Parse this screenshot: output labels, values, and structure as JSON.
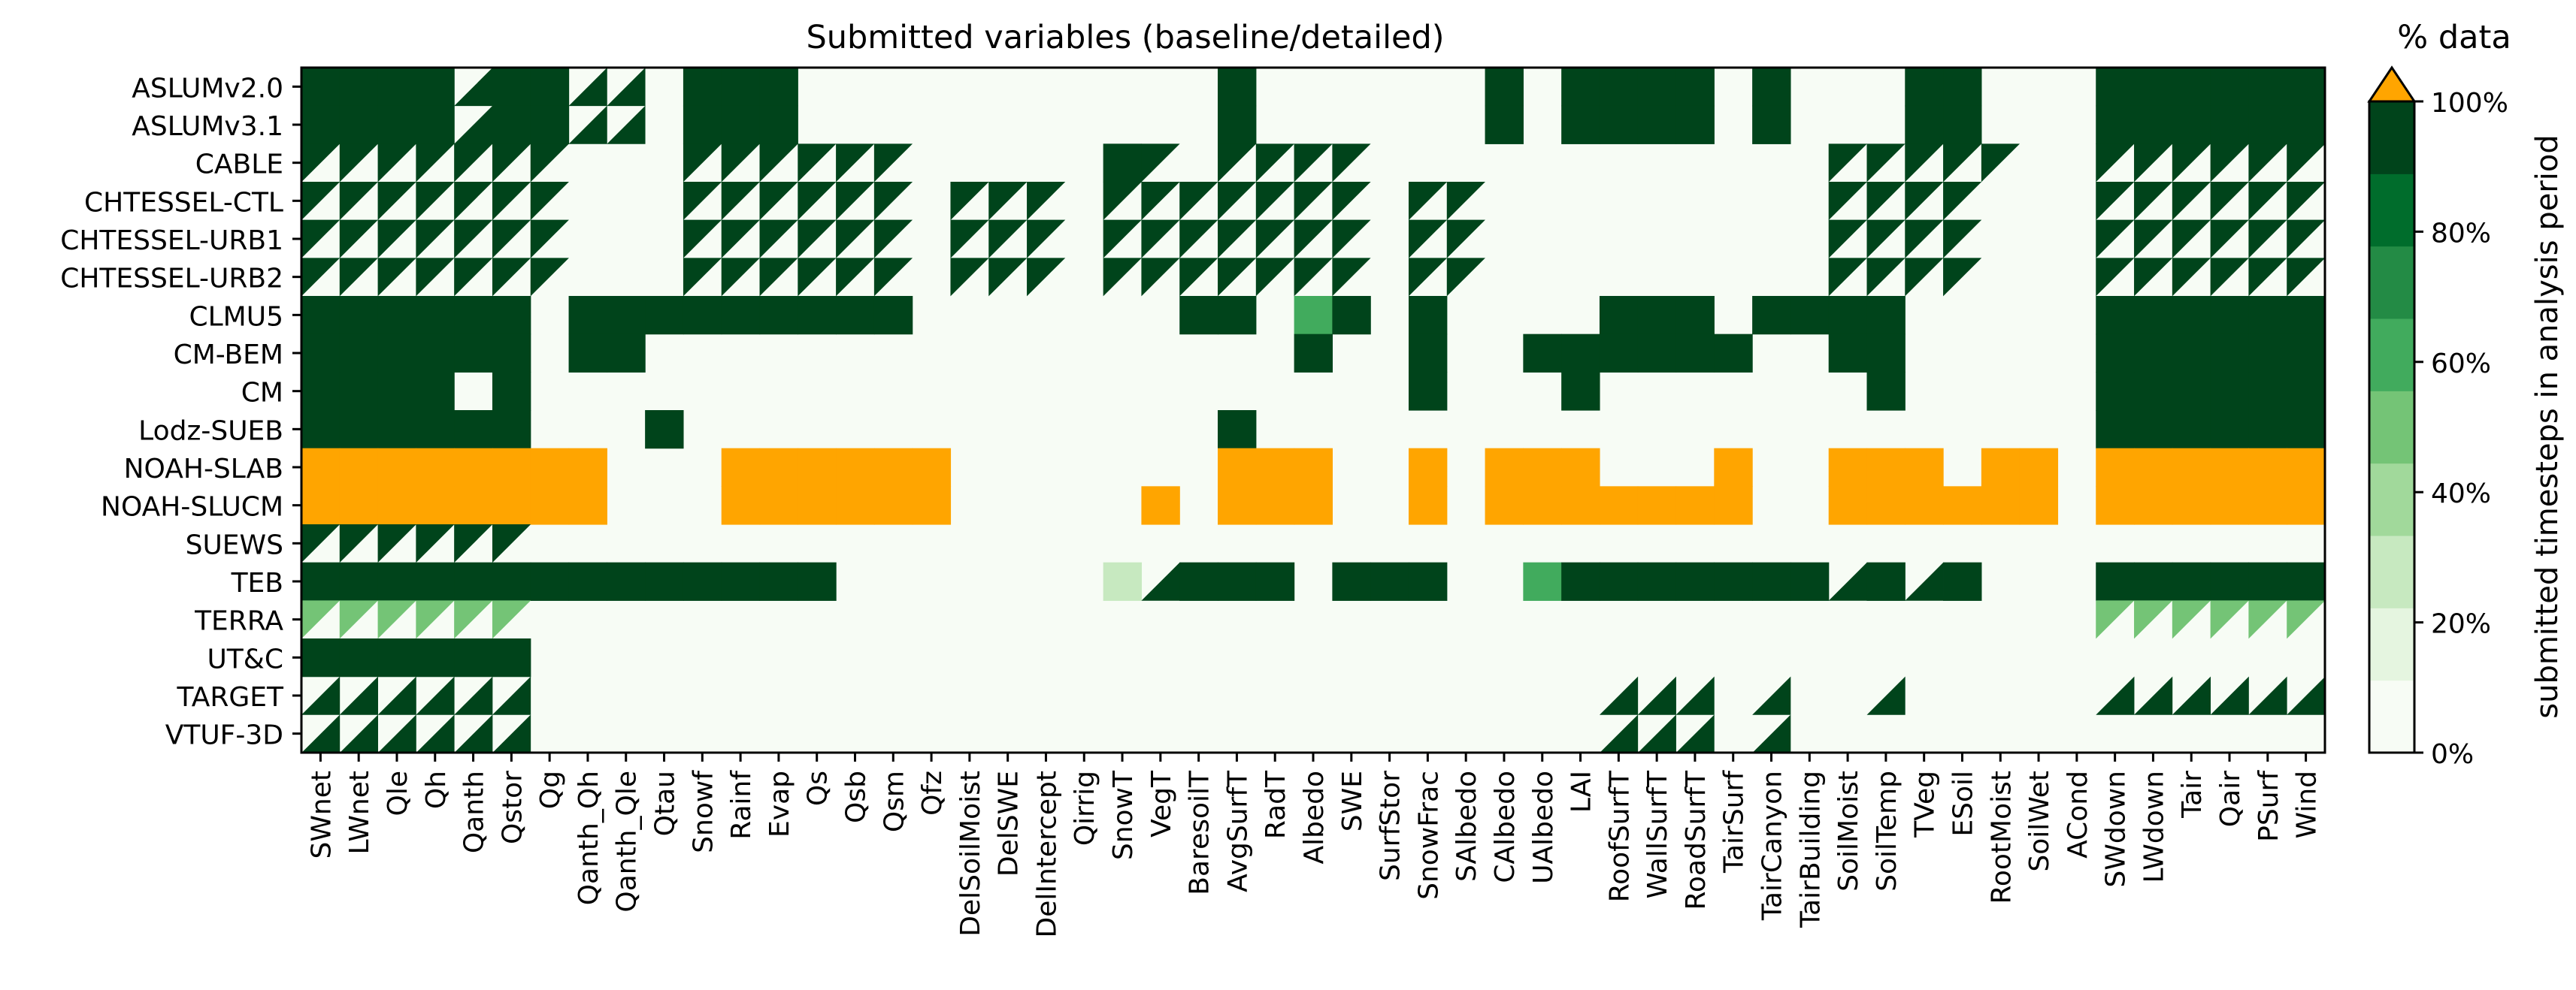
{
  "chart_data": {
    "type": "heatmap",
    "title": "Submitted variables (baseline/detailed)",
    "colorbar": {
      "title": "% data",
      "label": "submitted timesteps in analysis period",
      "ticks": [
        "0%",
        "20%",
        "40%",
        "60%",
        "80%",
        "100%"
      ],
      "levels": [
        "#f7fcf5",
        "#e5f5e0",
        "#c7e9c0",
        "#a1d99b",
        "#74c476",
        "#41ab5d",
        "#238b45",
        "#006d2c",
        "#00441b"
      ],
      "over_color": "#ffa500",
      "fill_color": "#00441b",
      "background_color": "#f7fcf5"
    },
    "models": [
      "ASLUMv2.0",
      "ASLUMv3.1",
      "CABLE",
      "CHTESSEL-CTL",
      "CHTESSEL-URB1",
      "CHTESSEL-URB2",
      "CLMU5",
      "CM-BEM",
      "CM",
      "Lodz-SUEB",
      "NOAH-SLAB",
      "NOAH-SLUCM",
      "SUEWS",
      "TEB",
      "TERRA",
      "UT&C",
      "TARGET",
      "VTUF-3D"
    ],
    "variables": [
      "SWnet",
      "LWnet",
      "Qle",
      "Qh",
      "Qanth",
      "Qstor",
      "Qg",
      "Qanth_Qh",
      "Qanth_Qle",
      "Qtau",
      "Snowf",
      "Rainf",
      "Evap",
      "Qs",
      "Qsb",
      "Qsm",
      "Qfz",
      "DelSoilMoist",
      "DelSWE",
      "DelIntercept",
      "Qirrig",
      "SnowT",
      "VegT",
      "BaresoilT",
      "AvgSurfT",
      "RadT",
      "Albedo",
      "SWE",
      "SurfStor",
      "SnowFrac",
      "SAlbedo",
      "CAlbedo",
      "UAlbedo",
      "LAI",
      "RoofSurfT",
      "WallSurfT",
      "RoadSurfT",
      "TairSurf",
      "TairCanyon",
      "TairBuilding",
      "SoilMoist",
      "SoilTemp",
      "TVeg",
      "ESoil",
      "RootMoist",
      "SoilWet",
      "ACond",
      "SWdown",
      "LWdown",
      "Tair",
      "Qair",
      "PSurf",
      "Wind"
    ],
    "cell_codes": {
      "F": "baseline and detailed submitted",
      "B": "baseline only (upper-left triangle)",
      "D": "detailed only (lower-right triangle)",
      "O": "over 100% (orange)"
    },
    "rows": [
      [
        "F",
        "F",
        "F",
        "F",
        "D",
        "F",
        "F",
        "D",
        "D",
        "",
        "F",
        "F",
        "F",
        "",
        "",
        "",
        "",
        "",
        "",
        "",
        "",
        "",
        "",
        "",
        "F",
        "",
        "",
        "",
        "",
        "",
        "",
        "F",
        "",
        "F",
        "F",
        "F",
        "F",
        "",
        "F",
        "",
        "",
        "",
        "F",
        "F",
        "",
        "",
        "",
        "F",
        "F",
        "F",
        "F",
        "F",
        "F"
      ],
      [
        "F",
        "F",
        "F",
        "F",
        "D",
        "F",
        "F",
        "D",
        "D",
        "",
        "F",
        "F",
        "F",
        "",
        "",
        "",
        "",
        "",
        "",
        "",
        "",
        "",
        "",
        "",
        "F",
        "",
        "",
        "",
        "",
        "",
        "",
        "F",
        "",
        "F",
        "F",
        "F",
        "F",
        "",
        "F",
        "",
        "",
        "",
        "F",
        "F",
        "",
        "",
        "",
        "F",
        "F",
        "F",
        "F",
        "F",
        "F"
      ],
      [
        "B",
        "B",
        "B",
        "B",
        "B",
        "B",
        "B",
        "",
        "",
        "",
        "B",
        "B",
        "B",
        "B",
        "B",
        "B",
        "",
        "",
        "",
        "",
        "",
        "F",
        "B",
        "",
        "B",
        "B",
        "B",
        "B",
        "",
        "",
        "",
        "",
        "",
        "",
        "",
        "",
        "",
        "",
        "",
        "",
        "B",
        "B",
        "B",
        "B",
        "B",
        "",
        "",
        "B",
        "B",
        "B",
        "B",
        "B",
        "B"
      ],
      [
        "B",
        "B",
        "B",
        "B",
        "B",
        "B",
        "B",
        "",
        "",
        "",
        "B",
        "B",
        "B",
        "B",
        "B",
        "B",
        "",
        "B",
        "B",
        "B",
        "",
        "B",
        "B",
        "B",
        "B",
        "B",
        "B",
        "B",
        "",
        "B",
        "B",
        "",
        "",
        "",
        "",
        "",
        "",
        "",
        "",
        "",
        "B",
        "B",
        "B",
        "B",
        "",
        "",
        "",
        "B",
        "B",
        "B",
        "B",
        "B",
        "B"
      ],
      [
        "B",
        "B",
        "B",
        "B",
        "B",
        "B",
        "B",
        "",
        "",
        "",
        "B",
        "B",
        "B",
        "B",
        "B",
        "B",
        "",
        "B",
        "B",
        "B",
        "",
        "B",
        "B",
        "B",
        "B",
        "B",
        "B",
        "B",
        "",
        "B",
        "B",
        "",
        "",
        "",
        "",
        "",
        "",
        "",
        "",
        "",
        "B",
        "B",
        "B",
        "B",
        "",
        "",
        "",
        "B",
        "B",
        "B",
        "B",
        "B",
        "B"
      ],
      [
        "B",
        "B",
        "B",
        "B",
        "B",
        "B",
        "B",
        "",
        "",
        "",
        "B",
        "B",
        "B",
        "B",
        "B",
        "B",
        "",
        "B",
        "B",
        "B",
        "",
        "B",
        "B",
        "B",
        "B",
        "B",
        "B",
        "B",
        "",
        "B",
        "B",
        "",
        "",
        "",
        "",
        "",
        "",
        "",
        "",
        "",
        "B",
        "B",
        "B",
        "B",
        "",
        "",
        "",
        "B",
        "B",
        "B",
        "B",
        "B",
        "B"
      ],
      [
        "F",
        "F",
        "F",
        "F",
        "F",
        "F",
        "",
        "F",
        "F",
        "F",
        "F",
        "F",
        "F",
        "F",
        "F",
        "F",
        "",
        "",
        "",
        "",
        "",
        "",
        "",
        "F",
        "F",
        "",
        "F",
        "F",
        "",
        "F",
        "",
        "",
        "",
        "",
        "F",
        "F",
        "F",
        "",
        "F",
        "F",
        "F",
        "F",
        "",
        "",
        "",
        "",
        "",
        "F",
        "F",
        "F",
        "F",
        "F",
        "F"
      ],
      [
        "F",
        "F",
        "F",
        "F",
        "F",
        "F",
        "",
        "F",
        "F",
        "",
        "",
        "",
        "",
        "",
        "",
        "",
        "",
        "",
        "",
        "",
        "",
        "",
        "",
        "",
        "",
        "",
        "F",
        "",
        "",
        "F",
        "",
        "",
        "F",
        "F",
        "F",
        "F",
        "F",
        "F",
        "",
        "",
        "F",
        "F",
        "",
        "",
        "",
        "",
        "",
        "F",
        "F",
        "F",
        "F",
        "F",
        "F"
      ],
      [
        "F",
        "F",
        "F",
        "F",
        "",
        "F",
        "",
        "",
        "",
        "",
        "",
        "",
        "",
        "",
        "",
        "",
        "",
        "",
        "",
        "",
        "",
        "",
        "",
        "",
        "",
        "",
        "",
        "",
        "",
        "F",
        "",
        "",
        "",
        "F",
        "",
        "",
        "",
        "",
        "",
        "",
        "",
        "F",
        "",
        "",
        "",
        "",
        "",
        "F",
        "F",
        "F",
        "F",
        "F",
        "F"
      ],
      [
        "F",
        "F",
        "F",
        "F",
        "F",
        "F",
        "",
        "",
        "",
        "F",
        "",
        "",
        "",
        "",
        "",
        "",
        "",
        "",
        "",
        "",
        "",
        "",
        "",
        "",
        "F",
        "",
        "",
        "",
        "",
        "",
        "",
        "",
        "",
        "",
        "",
        "",
        "",
        "",
        "",
        "",
        "",
        "",
        "",
        "",
        "",
        "",
        "",
        "F",
        "F",
        "F",
        "F",
        "F",
        "F"
      ],
      [
        "O",
        "O",
        "O",
        "O",
        "O",
        "O",
        "O",
        "O",
        "",
        "",
        "",
        "O",
        "O",
        "O",
        "O",
        "O",
        "O",
        "",
        "",
        "",
        "",
        "",
        "",
        "",
        "O",
        "O",
        "O",
        "",
        "",
        "O",
        "",
        "O",
        "O",
        "O",
        "",
        "",
        "",
        "O",
        "",
        "",
        "O",
        "O",
        "O",
        "",
        "O",
        "O",
        "",
        "O",
        "O",
        "O",
        "O",
        "O",
        "O"
      ],
      [
        "O",
        "O",
        "O",
        "O",
        "O",
        "O",
        "O",
        "O",
        "",
        "",
        "",
        "O",
        "O",
        "O",
        "O",
        "O",
        "O",
        "",
        "",
        "",
        "",
        "",
        "O",
        "",
        "O",
        "O",
        "O",
        "",
        "",
        "O",
        "",
        "O",
        "O",
        "O",
        "O",
        "O",
        "O",
        "O",
        "",
        "",
        "O",
        "O",
        "O",
        "O",
        "O",
        "O",
        "",
        "O",
        "O",
        "O",
        "O",
        "O",
        "O"
      ],
      [
        "B",
        "B",
        "B",
        "B",
        "B",
        "B",
        "",
        "",
        "",
        "",
        "",
        "",
        "",
        "",
        "",
        "",
        "",
        "",
        "",
        "",
        "",
        "",
        "",
        "",
        "",
        "",
        "",
        "",
        "",
        "",
        "",
        "",
        "",
        "",
        "",
        "",
        "",
        "",
        "",
        "",
        "",
        "",
        "",
        "",
        "",
        "",
        "",
        "",
        "",
        "",
        "",
        "",
        ""
      ],
      [
        "F",
        "F",
        "F",
        "F",
        "F",
        "F",
        "F",
        "F",
        "F",
        "F",
        "F",
        "F",
        "F",
        "F",
        "",
        "",
        "",
        "",
        "",
        "",
        "",
        "F",
        "D",
        "F",
        "F",
        "F",
        "",
        "F",
        "F",
        "F",
        "",
        "",
        "F",
        "F",
        "F",
        "F",
        "F",
        "F",
        "F",
        "F",
        "D",
        "F",
        "D",
        "F",
        "",
        "",
        "",
        "F",
        "F",
        "F",
        "F",
        "F",
        "F"
      ],
      [
        "B",
        "B",
        "B",
        "B",
        "B",
        "B",
        "",
        "",
        "",
        "",
        "",
        "",
        "",
        "",
        "",
        "",
        "",
        "",
        "",
        "",
        "",
        "",
        "",
        "",
        "",
        "",
        "",
        "",
        "",
        "",
        "",
        "",
        "",
        "",
        "",
        "",
        "",
        "",
        "",
        "",
        "",
        "",
        "",
        "",
        "",
        "",
        "",
        "B",
        "B",
        "B",
        "B",
        "B",
        "B"
      ],
      [
        "F",
        "F",
        "F",
        "F",
        "F",
        "F",
        "",
        "",
        "",
        "",
        "",
        "",
        "",
        "",
        "",
        "",
        "",
        "",
        "",
        "",
        "",
        "",
        "",
        "",
        "",
        "",
        "",
        "",
        "",
        "",
        "",
        "",
        "",
        "",
        "",
        "",
        "",
        "",
        "",
        "",
        "",
        "",
        "",
        "",
        "",
        "",
        "",
        "",
        "",
        "",
        "",
        "",
        ""
      ],
      [
        "D",
        "D",
        "D",
        "D",
        "D",
        "D",
        "",
        "",
        "",
        "",
        "",
        "",
        "",
        "",
        "",
        "",
        "",
        "",
        "",
        "",
        "",
        "",
        "",
        "",
        "",
        "",
        "",
        "",
        "",
        "",
        "",
        "",
        "",
        "",
        "D",
        "D",
        "D",
        "",
        "D",
        "",
        "",
        "D",
        "",
        "",
        "",
        "",
        "",
        "D",
        "D",
        "D",
        "D",
        "D",
        "D"
      ],
      [
        "D",
        "D",
        "D",
        "D",
        "D",
        "D",
        "",
        "",
        "",
        "",
        "",
        "",
        "",
        "",
        "",
        "",
        "",
        "",
        "",
        "",
        "",
        "",
        "",
        "",
        "",
        "",
        "",
        "",
        "",
        "",
        "",
        "",
        "",
        "",
        "D",
        "D",
        "D",
        "",
        "D",
        "",
        "",
        "",
        "",
        "",
        "",
        "",
        "",
        "",
        "",
        "",
        "",
        "",
        ""
      ]
    ],
    "special_cells": [
      {
        "model": "CLMU5",
        "variable": "Albedo",
        "value_pct": 60
      },
      {
        "model": "TEB",
        "variable": "SnowT",
        "value_pct": 25
      },
      {
        "model": "TEB",
        "variable": "UAlbedo",
        "value_pct": 60
      },
      {
        "model": "TERRA",
        "variable": "*",
        "value_pct": 50
      }
    ]
  }
}
